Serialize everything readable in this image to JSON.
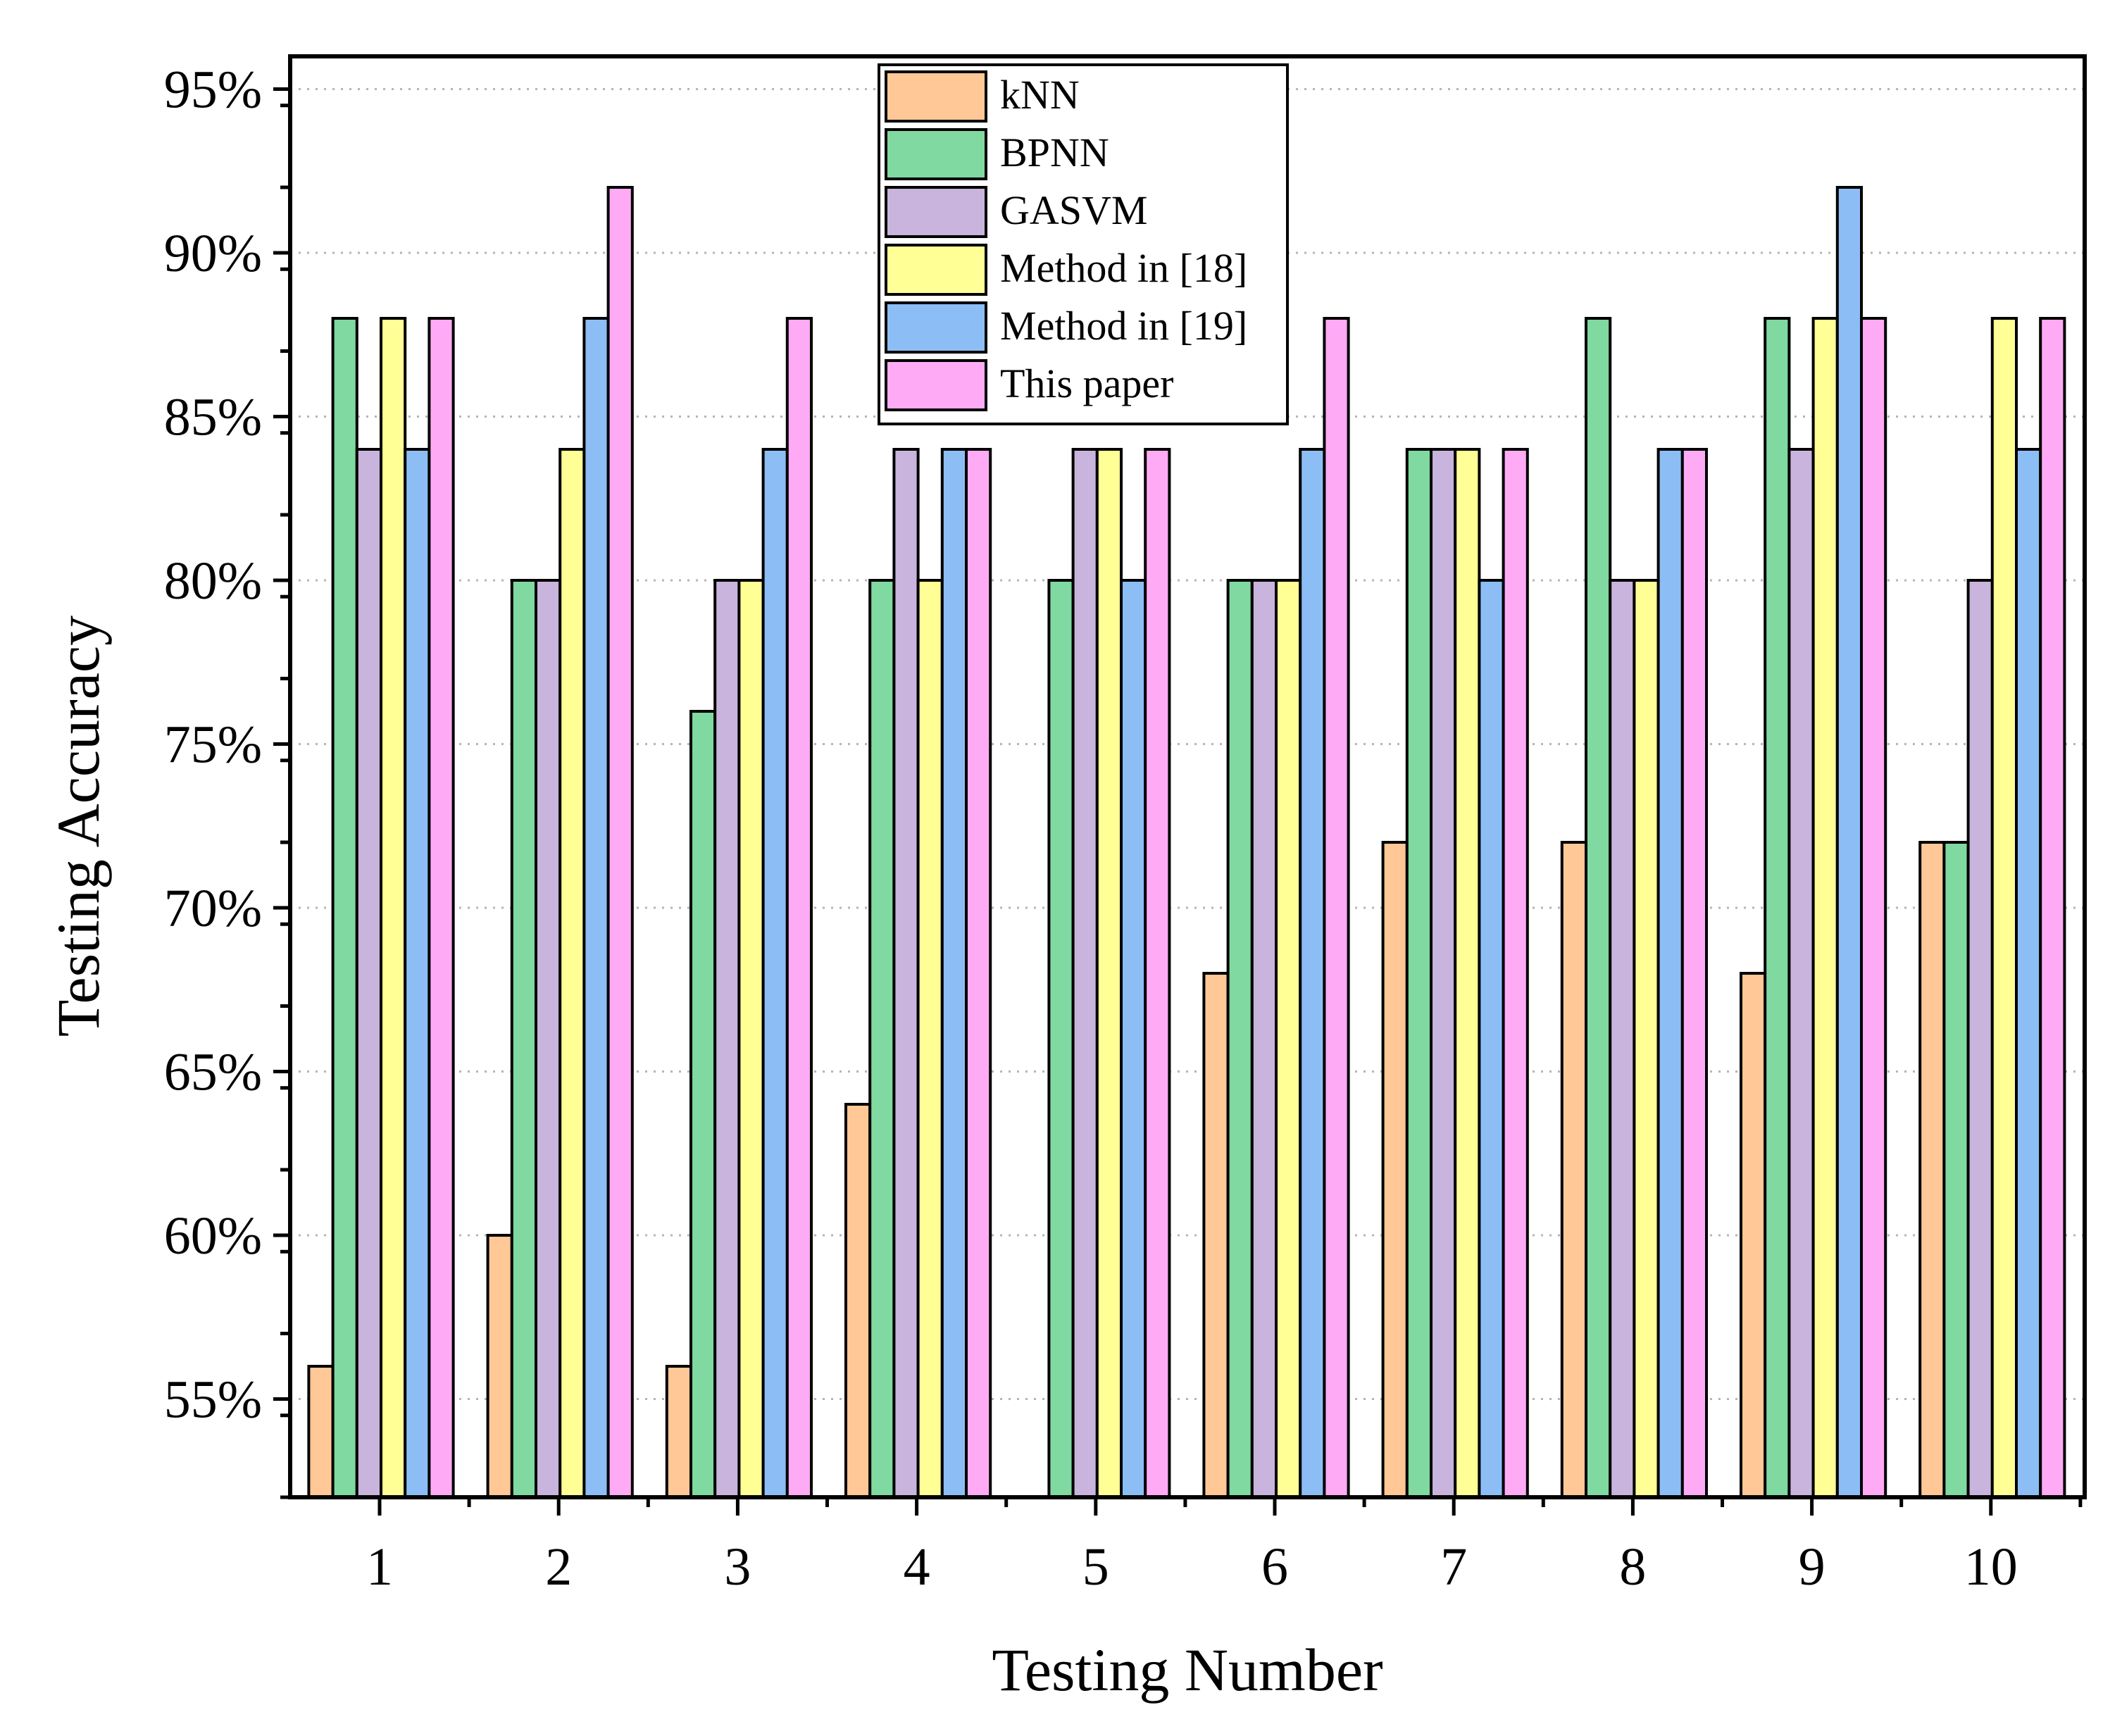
{
  "chart_data": {
    "type": "bar",
    "title": "",
    "xlabel": "Testing Number",
    "ylabel": "Testing Accuracy",
    "ylim": [
      52,
      96
    ],
    "yticks": [
      55,
      60,
      65,
      70,
      75,
      80,
      85,
      90,
      95
    ],
    "ytick_labels": [
      "55%",
      "60%",
      "65%",
      "70%",
      "75%",
      "80%",
      "85%",
      "90%",
      "95%"
    ],
    "grid": "horizontal dotted",
    "legend_position": "top-center",
    "categories": [
      "1",
      "2",
      "3",
      "4",
      "5",
      "6",
      "7",
      "8",
      "9",
      "10"
    ],
    "series": [
      {
        "name": "kNN",
        "color": "#FFC896",
        "values": [
          56,
          60,
          56,
          64,
          null,
          68,
          72,
          72,
          68,
          72
        ]
      },
      {
        "name": "BPNN",
        "color": "#7FD9A0",
        "values": [
          88,
          80,
          76,
          80,
          80,
          80,
          84,
          88,
          88,
          72
        ]
      },
      {
        "name": "GASVM",
        "color": "#C8B4DC",
        "values": [
          84,
          80,
          80,
          84,
          84,
          80,
          84,
          80,
          84,
          80
        ]
      },
      {
        "name": "Method in [18]",
        "color": "#FFFF96",
        "values": [
          88,
          84,
          80,
          80,
          84,
          80,
          84,
          80,
          88,
          88
        ]
      },
      {
        "name": "Method in [19]",
        "color": "#8CBEF5",
        "values": [
          84,
          88,
          84,
          84,
          80,
          84,
          80,
          84,
          92,
          84
        ]
      },
      {
        "name": "This paper",
        "color": "#FFAAF5",
        "values": [
          88,
          92,
          88,
          84,
          84,
          88,
          84,
          84,
          88,
          88
        ]
      }
    ]
  }
}
